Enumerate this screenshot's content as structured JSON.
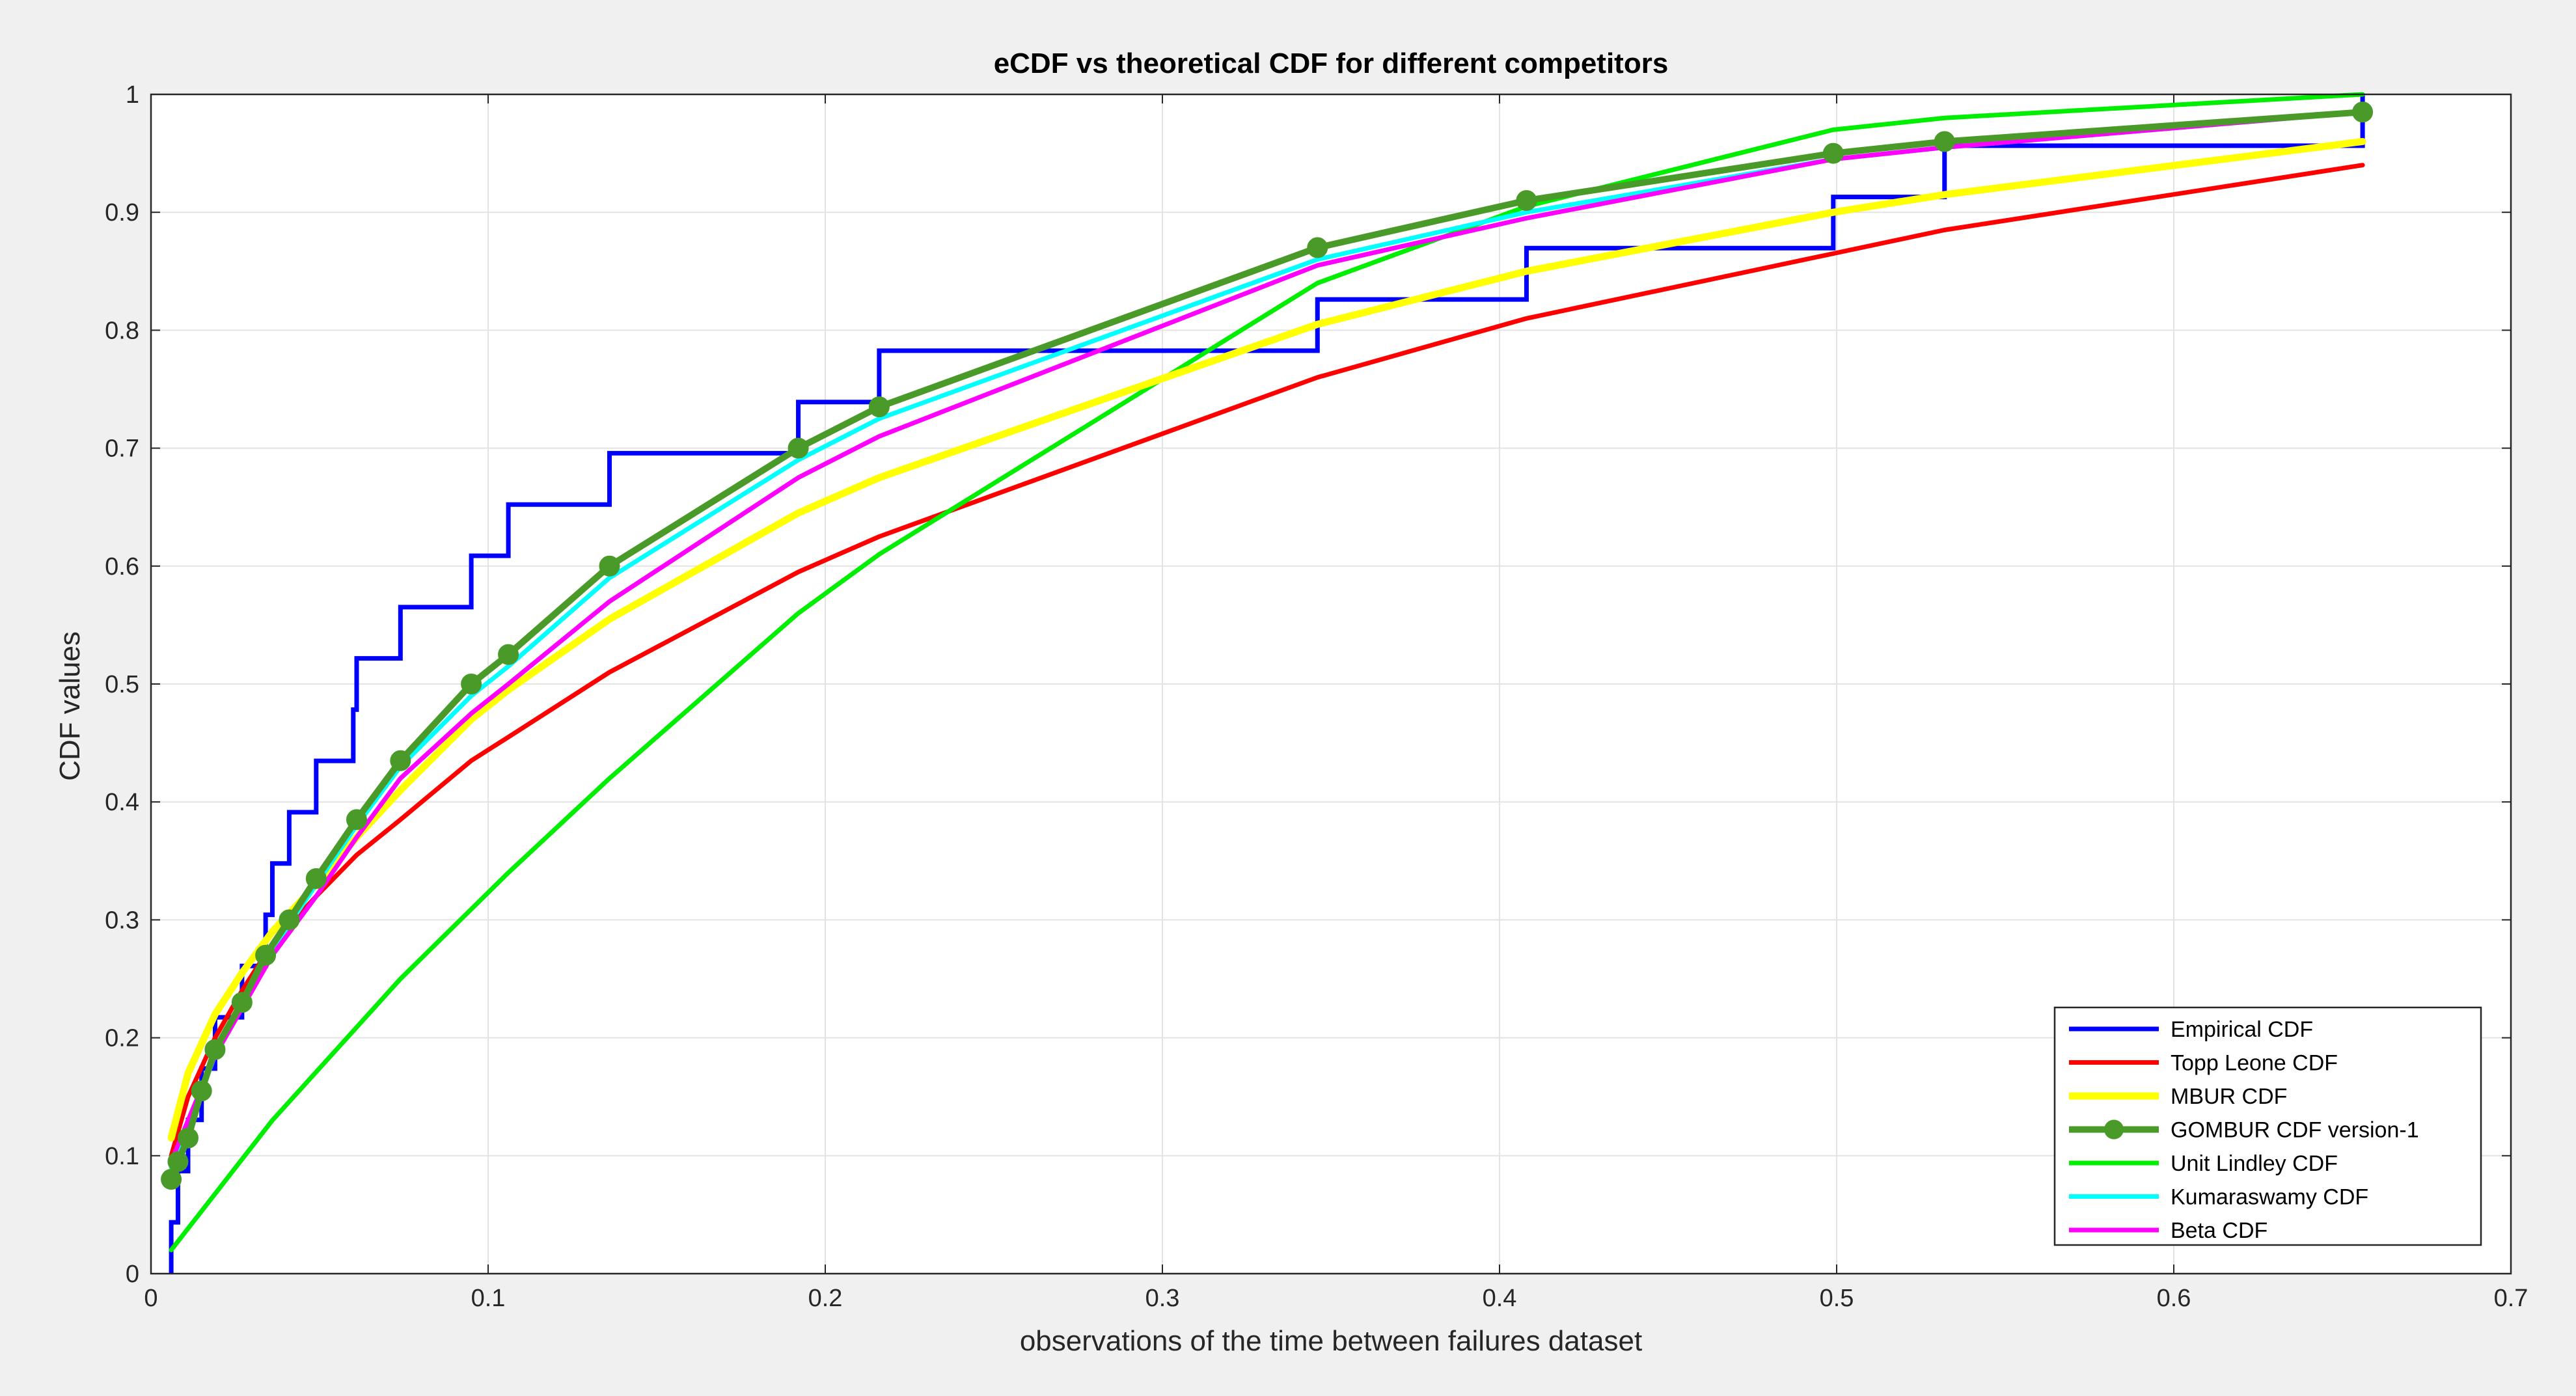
{
  "chart_data": {
    "type": "line",
    "title": "eCDF vs theoretical CDF for different competitors",
    "xlabel": "observations of the time between failures dataset",
    "ylabel": "CDF values",
    "xlim": [
      0,
      0.7
    ],
    "ylim": [
      0,
      1
    ],
    "xticks": [
      "0",
      "0.1",
      "0.2",
      "0.3",
      "0.4",
      "0.5",
      "0.6",
      "0.7"
    ],
    "yticks": [
      "0",
      "0.1",
      "0.2",
      "0.3",
      "0.4",
      "0.5",
      "0.6",
      "0.7",
      "0.8",
      "0.9",
      "1"
    ],
    "grid": true,
    "legend_position": "bottom-right",
    "empirical_steps": [
      [
        0.006,
        0.0435
      ],
      [
        0.008,
        0.087
      ],
      [
        0.011,
        0.1304
      ],
      [
        0.015,
        0.1739
      ],
      [
        0.019,
        0.2174
      ],
      [
        0.027,
        0.2609
      ],
      [
        0.034,
        0.3043
      ],
      [
        0.036,
        0.3478
      ],
      [
        0.041,
        0.3913
      ],
      [
        0.049,
        0.4348
      ],
      [
        0.06,
        0.4783
      ],
      [
        0.061,
        0.5217
      ],
      [
        0.074,
        0.5652
      ],
      [
        0.095,
        0.6087
      ],
      [
        0.106,
        0.6522
      ],
      [
        0.136,
        0.6957
      ],
      [
        0.192,
        0.7391
      ],
      [
        0.216,
        0.7826
      ],
      [
        0.346,
        0.8261
      ],
      [
        0.408,
        0.8696
      ],
      [
        0.499,
        0.913
      ],
      [
        0.532,
        0.9565
      ],
      [
        0.656,
        1.0
      ]
    ],
    "series": [
      {
        "name": "Empirical CDF",
        "color": "#0000ff",
        "style": "step",
        "x": [],
        "y": []
      },
      {
        "name": "Topp Leone CDF",
        "color": "#ff0000",
        "style": "line",
        "x": [
          0.006,
          0.011,
          0.019,
          0.027,
          0.036,
          0.049,
          0.061,
          0.074,
          0.095,
          0.106,
          0.136,
          0.192,
          0.216,
          0.346,
          0.408,
          0.499,
          0.532,
          0.656
        ],
        "y": [
          0.1,
          0.15,
          0.2,
          0.24,
          0.28,
          0.32,
          0.355,
          0.385,
          0.435,
          0.455,
          0.51,
          0.595,
          0.625,
          0.76,
          0.81,
          0.865,
          0.885,
          0.94
        ]
      },
      {
        "name": "MBUR CDF",
        "color": "#ffff00",
        "style": "line",
        "x": [
          0.006,
          0.011,
          0.019,
          0.027,
          0.036,
          0.049,
          0.061,
          0.074,
          0.095,
          0.106,
          0.136,
          0.192,
          0.216,
          0.346,
          0.408,
          0.499,
          0.532,
          0.656
        ],
        "y": [
          0.115,
          0.17,
          0.22,
          0.255,
          0.29,
          0.33,
          0.37,
          0.41,
          0.47,
          0.495,
          0.555,
          0.645,
          0.675,
          0.805,
          0.85,
          0.9,
          0.915,
          0.96
        ]
      },
      {
        "name": "GOMBUR CDF version-1",
        "color": "#4a9a2a",
        "style": "line-marker",
        "x": [
          0.006,
          0.008,
          0.011,
          0.015,
          0.019,
          0.027,
          0.034,
          0.041,
          0.049,
          0.061,
          0.074,
          0.095,
          0.106,
          0.136,
          0.192,
          0.216,
          0.346,
          0.408,
          0.499,
          0.532,
          0.656
        ],
        "y": [
          0.08,
          0.095,
          0.115,
          0.155,
          0.19,
          0.23,
          0.27,
          0.3,
          0.335,
          0.385,
          0.435,
          0.5,
          0.525,
          0.6,
          0.7,
          0.735,
          0.87,
          0.91,
          0.95,
          0.96,
          0.985
        ]
      },
      {
        "name": "Unit Lindley CDF",
        "color": "#00ee00",
        "style": "line",
        "x": [
          0.006,
          0.036,
          0.074,
          0.106,
          0.136,
          0.192,
          0.216,
          0.346,
          0.408,
          0.499,
          0.532,
          0.656
        ],
        "y": [
          0.02,
          0.13,
          0.25,
          0.34,
          0.42,
          0.56,
          0.61,
          0.84,
          0.905,
          0.97,
          0.98,
          1.0
        ]
      },
      {
        "name": "Kumaraswamy CDF",
        "color": "#00ffff",
        "style": "line",
        "x": [
          0.006,
          0.011,
          0.019,
          0.027,
          0.036,
          0.049,
          0.061,
          0.074,
          0.095,
          0.106,
          0.136,
          0.192,
          0.216,
          0.346,
          0.408,
          0.499,
          0.532,
          0.656
        ],
        "y": [
          0.09,
          0.125,
          0.185,
          0.23,
          0.275,
          0.33,
          0.38,
          0.43,
          0.49,
          0.515,
          0.59,
          0.69,
          0.725,
          0.86,
          0.9,
          0.945,
          0.955,
          0.985
        ]
      },
      {
        "name": "Beta CDF",
        "color": "#ff00ff",
        "style": "line",
        "x": [
          0.006,
          0.011,
          0.019,
          0.027,
          0.036,
          0.049,
          0.061,
          0.074,
          0.095,
          0.106,
          0.136,
          0.192,
          0.216,
          0.346,
          0.408,
          0.499,
          0.532,
          0.656
        ],
        "y": [
          0.095,
          0.13,
          0.185,
          0.225,
          0.27,
          0.32,
          0.37,
          0.42,
          0.475,
          0.5,
          0.57,
          0.675,
          0.71,
          0.855,
          0.895,
          0.945,
          0.955,
          0.985
        ]
      }
    ]
  }
}
